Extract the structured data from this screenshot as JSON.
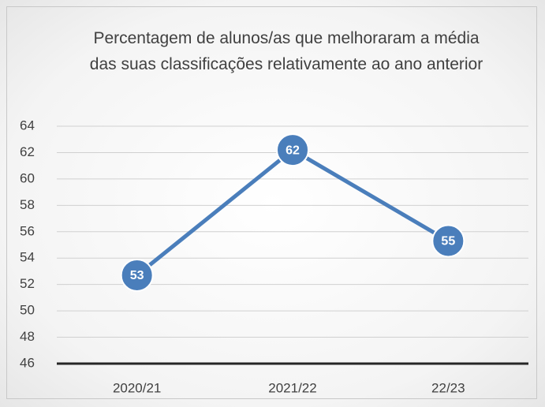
{
  "chart_data": {
    "type": "line",
    "title": "Percentagem de alunos/as que melhoraram a média das suas classificações relativamente ao ano anterior",
    "categories": [
      "2020/21",
      "2021/22",
      "22/23"
    ],
    "values": [
      52.7,
      62.2,
      55.3
    ],
    "value_labels": [
      "53",
      "62",
      "55"
    ],
    "color": "#4a7ebb",
    "ylim": [
      46,
      64
    ],
    "yticks": [
      46,
      48,
      50,
      52,
      54,
      56,
      58,
      60,
      62,
      64
    ],
    "grid": true
  }
}
